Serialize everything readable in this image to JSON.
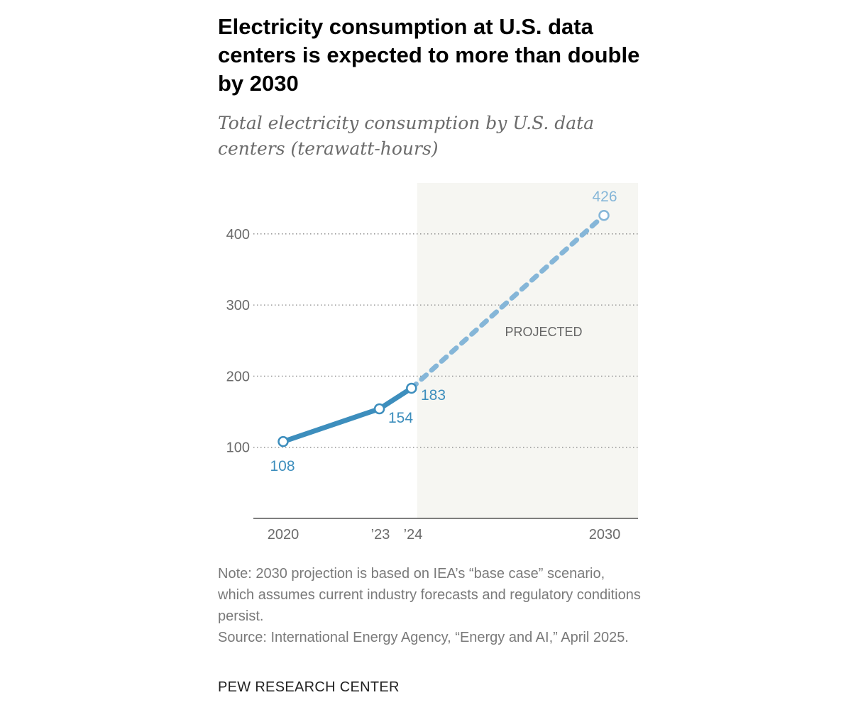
{
  "title": "Electricity consumption at U.S. data centers is expected to more than double by 2030",
  "subtitle": "Total electricity consumption by U.S. data centers (terawatt-hours)",
  "chart_data": {
    "type": "line",
    "x": [
      2020,
      2023,
      2024,
      2030
    ],
    "x_tick_labels": [
      "2020",
      "’23",
      "’24",
      "2030"
    ],
    "values": [
      108,
      154,
      183,
      426
    ],
    "data_labels": [
      "108",
      "154",
      "183",
      "426"
    ],
    "projected_from": 2024,
    "projected_label": "PROJECTED",
    "y_ticks": [
      100,
      200,
      300,
      400
    ],
    "y_tick_labels": [
      "100",
      "200",
      "300",
      "400"
    ],
    "ylim": [
      0,
      470
    ],
    "grid": "dotted horizontal",
    "colors": {
      "actual": "#3d8ebd",
      "projected": "#85b6d8",
      "projected_shade": "#f6f6f2"
    }
  },
  "note": "Note: 2030 projection is based on IEA’s “base case” scenario, which assumes current industry forecasts and regulatory conditions persist.",
  "source": "Source: International Energy Agency, “Energy and AI,” April 2025.",
  "brand": "PEW RESEARCH CENTER"
}
